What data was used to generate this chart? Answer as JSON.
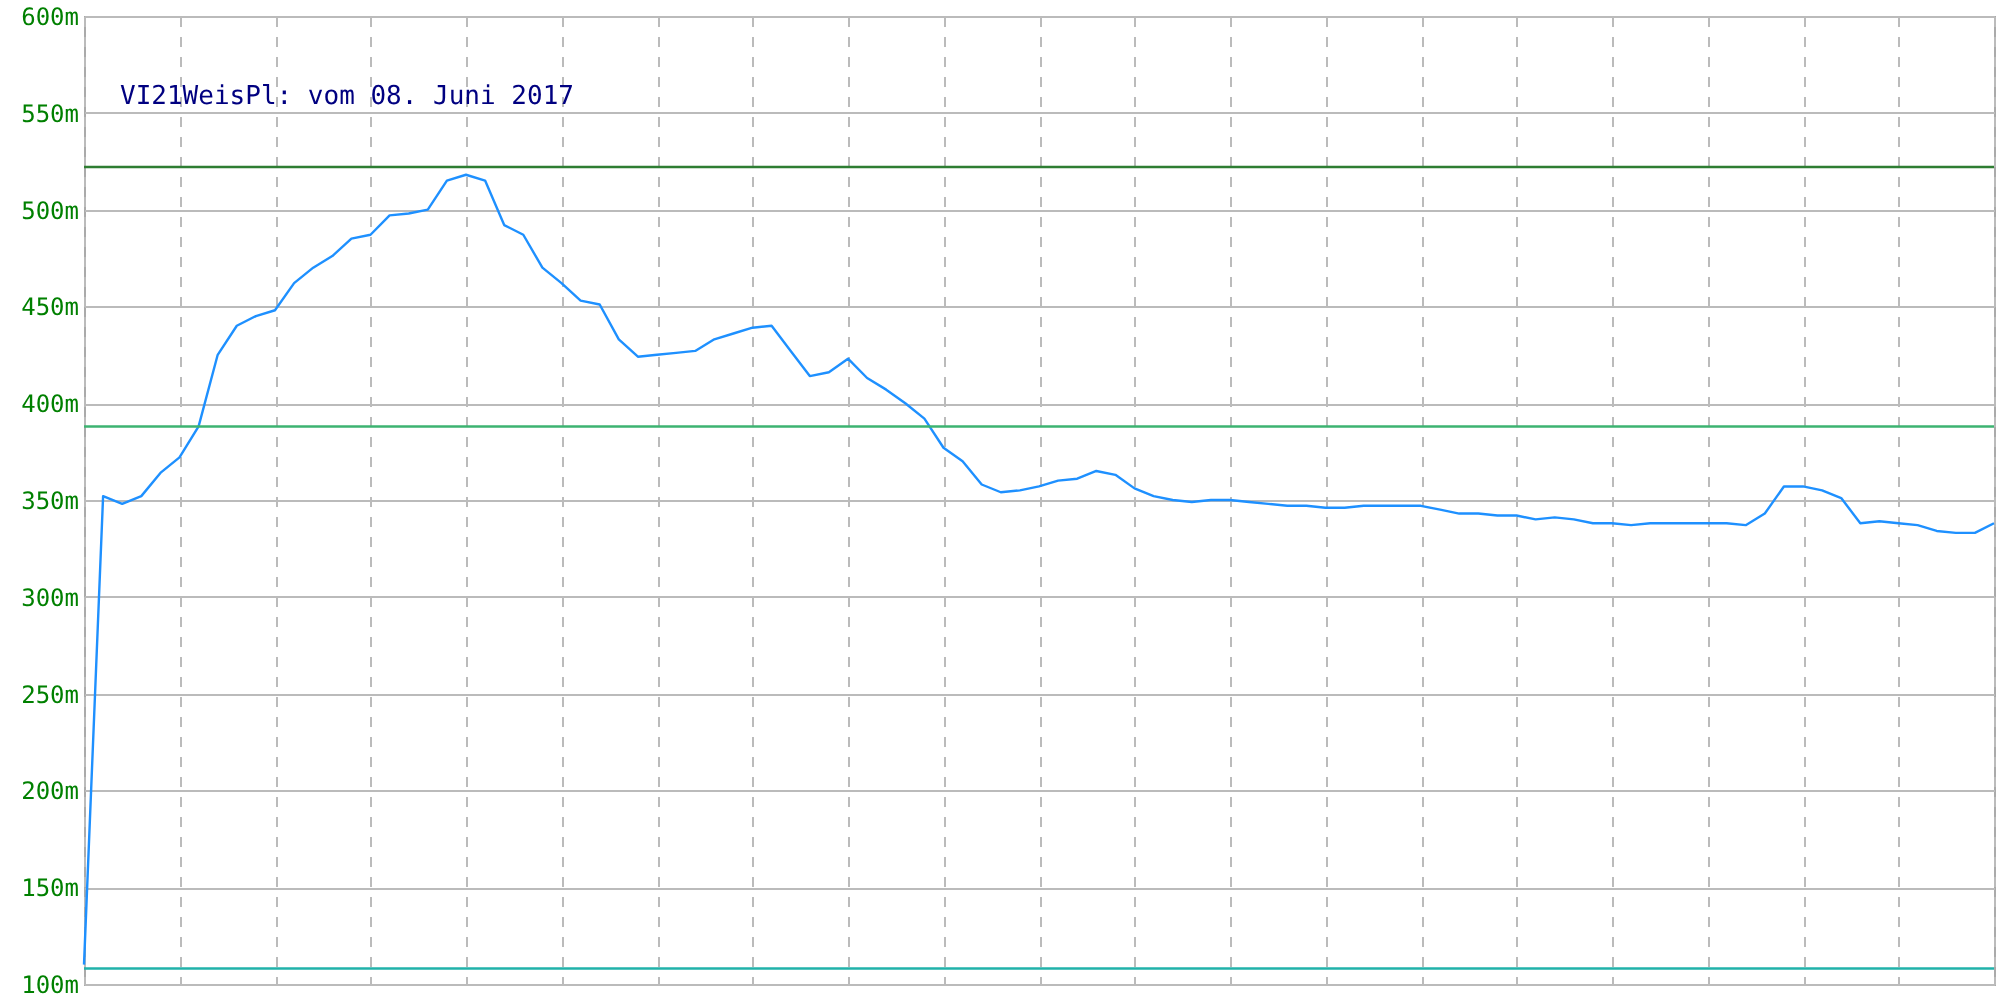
{
  "chart_data": {
    "type": "line",
    "title": "VI21WeisPl: vom 08. Juni 2017",
    "categories": [
      null,
      null,
      null,
      null,
      null,
      null,
      null,
      null,
      null,
      null,
      null,
      null,
      null,
      null,
      null,
      null,
      null,
      null,
      null,
      null,
      null,
      null,
      null,
      null,
      null,
      null,
      null,
      null,
      null,
      null,
      null,
      null,
      null,
      null,
      null,
      null,
      null,
      null,
      null,
      null,
      null,
      null,
      null,
      null,
      null,
      null,
      null,
      null,
      null,
      null,
      null,
      null,
      null,
      null,
      null,
      null,
      null,
      null,
      null,
      null,
      null,
      null,
      null,
      null,
      null,
      null,
      null,
      null,
      null,
      null,
      null,
      null,
      null,
      null,
      null,
      null,
      null,
      null,
      null,
      null,
      null,
      null,
      null,
      null,
      null,
      null,
      null,
      null,
      null,
      null,
      null,
      null,
      null,
      null,
      null,
      null,
      null,
      null,
      null,
      null,
      null
    ],
    "series": [
      {
        "color": "#1e90ff",
        "values": [
          110,
          352,
          348,
          352,
          364,
          372,
          388,
          425,
          440,
          445,
          448,
          462,
          470,
          476,
          485,
          487,
          497,
          498,
          500,
          515,
          518,
          515,
          492,
          487,
          470,
          462,
          453,
          451,
          433,
          424,
          425,
          426,
          427,
          433,
          436,
          439,
          440,
          427,
          414,
          416,
          423,
          413,
          407,
          400,
          392,
          377,
          370,
          358,
          354,
          355,
          357,
          360,
          361,
          365,
          363,
          356,
          352,
          350,
          349,
          350,
          350,
          349,
          348,
          347,
          347,
          346,
          346,
          347,
          347,
          347,
          347,
          345,
          343,
          343,
          342,
          342,
          340,
          341,
          340,
          338,
          338,
          337,
          338,
          338,
          338,
          338,
          338,
          337,
          343,
          357,
          357,
          355,
          351,
          338,
          339,
          338,
          337,
          334,
          333,
          333,
          338
        ]
      }
    ],
    "ylim": [
      100,
      600
    ],
    "yticks": [
      {
        "value": 100,
        "label": "100m"
      },
      {
        "value": 150,
        "label": "150m"
      },
      {
        "value": 200,
        "label": "200m"
      },
      {
        "value": 250,
        "label": "250m"
      },
      {
        "value": 300,
        "label": "300m"
      },
      {
        "value": 350,
        "label": "350m"
      },
      {
        "value": 400,
        "label": "400m"
      },
      {
        "value": 450,
        "label": "450m"
      },
      {
        "value": 500,
        "label": "500m"
      },
      {
        "value": 550,
        "label": "550m"
      },
      {
        "value": 600,
        "label": "600m"
      }
    ],
    "grid": true,
    "line_style": "solid",
    "ref_lines": [
      {
        "axis": "y",
        "value": 522,
        "color": "#2e7d32"
      },
      {
        "axis": "y",
        "value": 388,
        "color": "#3cb371"
      },
      {
        "axis": "y",
        "value": 108,
        "color": "#20b2aa"
      }
    ]
  }
}
